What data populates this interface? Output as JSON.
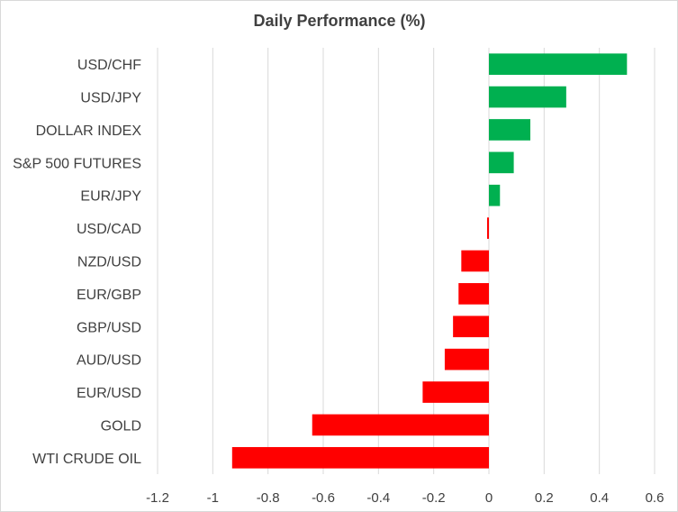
{
  "chart_data": {
    "type": "bar",
    "orientation": "horizontal",
    "title": "Daily Performance (%)",
    "categories": [
      "USD/CHF",
      "USD/JPY",
      "DOLLAR INDEX",
      "S&P 500 FUTURES",
      "EUR/JPY",
      "USD/CAD",
      "NZD/USD",
      "EUR/GBP",
      "GBP/USD",
      "AUD/USD",
      "EUR/USD",
      "GOLD",
      "WTI CRUDE OIL"
    ],
    "values": [
      0.5,
      0.28,
      0.15,
      0.09,
      0.04,
      -0.005,
      -0.1,
      -0.11,
      -0.13,
      -0.16,
      -0.24,
      -0.64,
      -0.93
    ],
    "xlim": [
      -1.2,
      0.6
    ],
    "xticks": [
      -1.2,
      -1,
      -0.8,
      -0.6,
      -0.4,
      -0.2,
      0,
      0.2,
      0.4,
      0.6
    ],
    "xtick_labels": [
      "-1.2",
      "-1",
      "-0.8",
      "-0.6",
      "-0.4",
      "-0.2",
      "0",
      "0.2",
      "0.4",
      "0.6"
    ],
    "grid": "vertical",
    "legend": "none",
    "colors": {
      "positive": "#00b050",
      "negative": "#ff0000",
      "gridline": "#d9d9d9",
      "text": "#404040"
    }
  }
}
